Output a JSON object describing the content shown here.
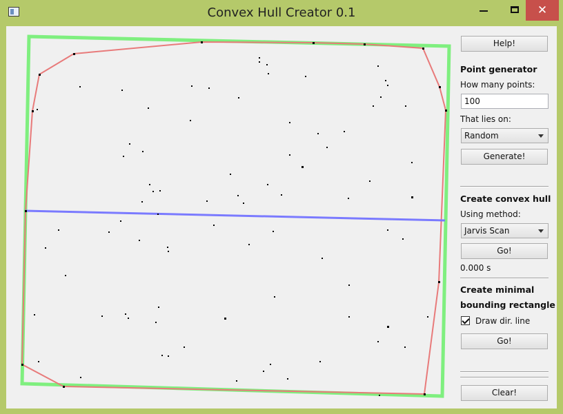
{
  "window": {
    "title": "Convex Hull Creator 0.1",
    "close_glyph": "✕"
  },
  "panel": {
    "help_label": "Help!",
    "point_generator": {
      "heading": "Point generator",
      "how_many_label": "How many points:",
      "how_many_value": "100",
      "lies_on_label": "That lies on:",
      "lies_on_value": "Random",
      "generate_label": "Generate!"
    },
    "convex_hull": {
      "heading": "Create convex hull",
      "method_label": "Using method:",
      "method_value": "Jarvis Scan",
      "go_label": "Go!",
      "time_text": "0.000 s"
    },
    "bounding_rect": {
      "heading_line1": "Create minimal",
      "heading_line2": "bounding rectangle",
      "draw_dir_label": "Draw dir. line",
      "draw_dir_checked": true,
      "go_label": "Go!"
    },
    "clear_label": "Clear!"
  },
  "colors": {
    "hull": "#e87a7a",
    "bounding_rect": "#7fef7f",
    "dir_line": "#7a7aff",
    "points": "#000000"
  }
}
